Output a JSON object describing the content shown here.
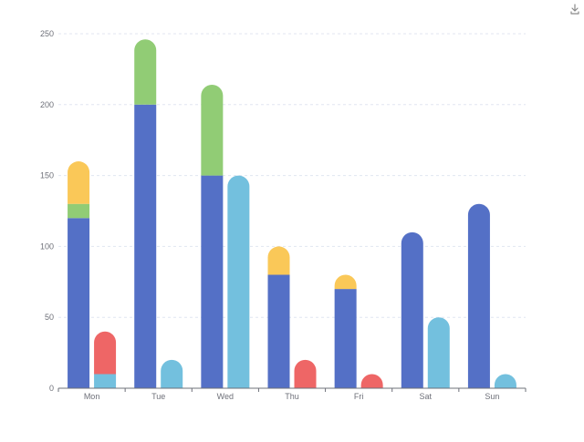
{
  "toolbox": {
    "download_icon": "download-icon"
  },
  "chart_data": {
    "type": "bar",
    "stacked": true,
    "grid": true,
    "categories": [
      "Mon",
      "Tue",
      "Wed",
      "Thu",
      "Fri",
      "Sat",
      "Sun"
    ],
    "ylim": [
      0,
      250
    ],
    "yticks": [
      0,
      50,
      100,
      150,
      200,
      250
    ],
    "stacks": [
      {
        "name": "",
        "series": [
          {
            "name": "",
            "color": "#5470c6",
            "values": [
              120,
              200,
              150,
              80,
              70,
              110,
              130
            ]
          },
          {
            "name": "",
            "color": "#91cc75",
            "values": [
              10,
              46,
              64,
              0,
              0,
              0,
              0
            ]
          },
          {
            "name": "",
            "color": "#fac858",
            "values": [
              30,
              0,
              0,
              20,
              10,
              0,
              0
            ]
          }
        ]
      },
      {
        "name": "",
        "series": [
          {
            "name": "",
            "color": "#73c0de",
            "values": [
              10,
              20,
              150,
              0,
              0,
              50,
              10
            ]
          },
          {
            "name": "",
            "color": "#ee6666",
            "values": [
              30,
              0,
              0,
              20,
              10,
              0,
              0
            ]
          }
        ]
      }
    ]
  }
}
